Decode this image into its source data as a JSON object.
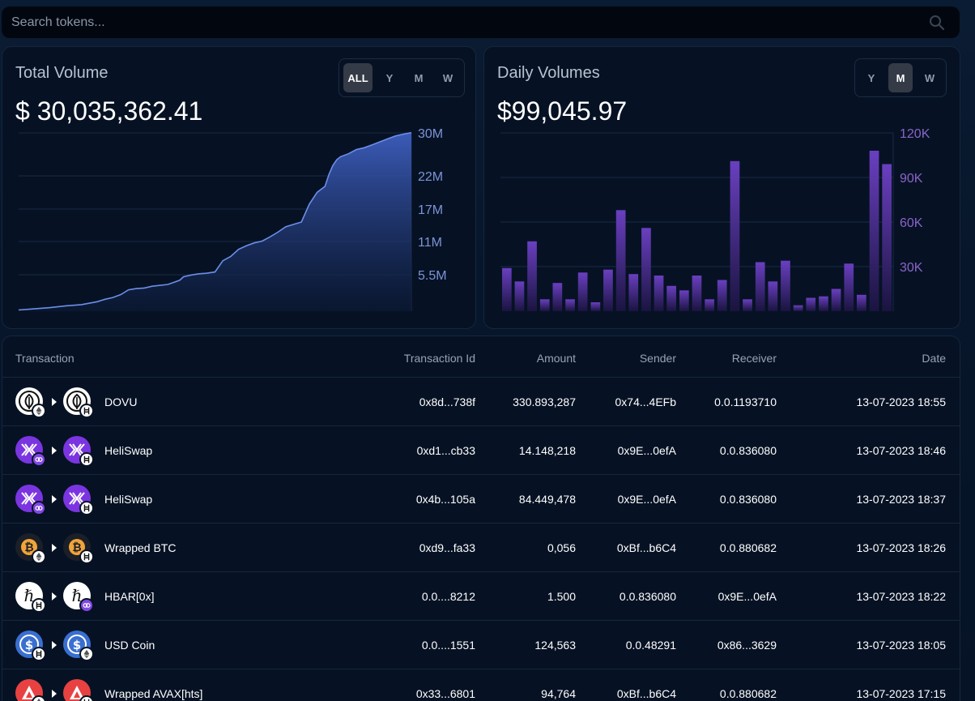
{
  "search": {
    "placeholder": "Search tokens..."
  },
  "total_volume": {
    "title": "Total Volume",
    "value": "$ 30,035,362.41",
    "ranges": [
      "ALL",
      "Y",
      "M",
      "W"
    ],
    "active": "ALL"
  },
  "daily_volumes": {
    "title": "Daily Volumes",
    "value": "$99,045.97",
    "ranges": [
      "Y",
      "M",
      "W"
    ],
    "active": "M"
  },
  "colors": {
    "area": "#4a6fd6",
    "bars": "#6b3fb8",
    "axis_total": "#7d93d6",
    "axis_daily": "#8a64c8"
  },
  "chart_data": [
    {
      "type": "area",
      "title": "Total Volume",
      "y_ticks": [
        "30M",
        "22M",
        "17M",
        "11M",
        "5.5M"
      ],
      "ylim": [
        0,
        30000000
      ],
      "x": [
        0,
        0.04,
        0.08,
        0.12,
        0.16,
        0.2,
        0.22,
        0.24,
        0.26,
        0.28,
        0.3,
        0.32,
        0.34,
        0.38,
        0.41,
        0.42,
        0.44,
        0.46,
        0.48,
        0.5,
        0.52,
        0.54,
        0.56,
        0.58,
        0.6,
        0.62,
        0.64,
        0.66,
        0.68,
        0.7,
        0.72,
        0.74,
        0.76,
        0.78,
        0.79,
        0.8,
        0.81,
        0.82,
        0.84,
        0.86,
        0.88,
        0.9,
        0.92,
        0.94,
        0.96,
        0.98,
        1.0
      ],
      "y": [
        200000,
        400000,
        600000,
        900000,
        1100000,
        1600000,
        2000000,
        2300000,
        2800000,
        3600000,
        3800000,
        3900000,
        4200000,
        4500000,
        5200000,
        5800000,
        6100000,
        6300000,
        6400000,
        6600000,
        8500000,
        9200000,
        10400000,
        11000000,
        11500000,
        11800000,
        12500000,
        13300000,
        14200000,
        14600000,
        15000000,
        18000000,
        20000000,
        21000000,
        23000000,
        24500000,
        25500000,
        26000000,
        26500000,
        27200000,
        27500000,
        28000000,
        28500000,
        29000000,
        29500000,
        29800000,
        30035362
      ]
    },
    {
      "type": "bar",
      "title": "Daily Volumes",
      "y_ticks": [
        "120K",
        "90K",
        "60K",
        "30K"
      ],
      "ylim": [
        0,
        120000
      ],
      "values": [
        29000,
        20000,
        47000,
        8000,
        19000,
        8000,
        26000,
        6000,
        28000,
        68000,
        25000,
        56000,
        24000,
        17000,
        14000,
        24000,
        8000,
        21000,
        101000,
        8000,
        33000,
        20000,
        34000,
        4000,
        9000,
        10000,
        15000,
        32000,
        11000,
        108000,
        99000
      ]
    }
  ],
  "table": {
    "headers": [
      "Transaction",
      "Transaction Id",
      "Amount",
      "Sender",
      "Receiver",
      "Date"
    ],
    "rows": [
      {
        "token": "DOVU",
        "txid": "0x8d...738f",
        "amount": "330.893,287",
        "sender": "0x74...4EFb",
        "receiver": "0.0.1193710",
        "date": "13-07-2023 18:55",
        "icon": "dovu-icon",
        "from_badge": "ethereum-badge",
        "to_badge": "hedera-badge"
      },
      {
        "token": "HeliSwap",
        "txid": "0xd1...cb33",
        "amount": "14.148,218",
        "sender": "0x9E...0efA",
        "receiver": "0.0.836080",
        "date": "13-07-2023 18:46",
        "icon": "heliswap-icon",
        "from_badge": "polygon-badge",
        "to_badge": "hedera-badge"
      },
      {
        "token": "HeliSwap",
        "txid": "0x4b...105a",
        "amount": "84.449,478",
        "sender": "0x9E...0efA",
        "receiver": "0.0.836080",
        "date": "13-07-2023 18:37",
        "icon": "heliswap-icon",
        "from_badge": "polygon-badge",
        "to_badge": "hedera-badge"
      },
      {
        "token": "Wrapped BTC",
        "txid": "0xd9...fa33",
        "amount": "0,056",
        "sender": "0xBf...b6C4",
        "receiver": "0.0.880682",
        "date": "13-07-2023 18:26",
        "icon": "bitcoin-icon",
        "from_badge": "ethereum-badge",
        "to_badge": "hedera-badge"
      },
      {
        "token": "HBAR[0x]",
        "txid": "0.0....8212",
        "amount": "1.500",
        "sender": "0.0.836080",
        "receiver": "0x9E...0efA",
        "date": "13-07-2023 18:22",
        "icon": "hbar-icon",
        "from_badge": "hedera-badge",
        "to_badge": "polygon-badge"
      },
      {
        "token": "USD Coin",
        "txid": "0.0....1551",
        "amount": "124,563",
        "sender": "0.0.48291",
        "receiver": "0x86...3629",
        "date": "13-07-2023 18:05",
        "icon": "usdc-icon",
        "from_badge": "hedera-badge",
        "to_badge": "ethereum-badge"
      },
      {
        "token": "Wrapped AVAX[hts]",
        "txid": "0x33...6801",
        "amount": "94,764",
        "sender": "0xBf...b6C4",
        "receiver": "0.0.880682",
        "date": "13-07-2023 17:15",
        "icon": "avax-icon",
        "from_badge": "ethereum-badge",
        "to_badge": "hedera-badge"
      }
    ]
  }
}
